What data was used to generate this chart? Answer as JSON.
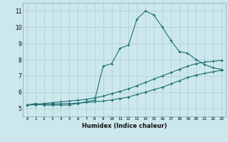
{
  "xlabel": "Humidex (Indice chaleur)",
  "bg_color": "#cce8ed",
  "grid_color": "#aacdd4",
  "line_color": "#1e7070",
  "xlim": [
    -0.5,
    23.5
  ],
  "ylim": [
    4.5,
    11.5
  ],
  "xticks": [
    0,
    1,
    2,
    3,
    4,
    5,
    6,
    7,
    8,
    9,
    10,
    11,
    12,
    13,
    14,
    15,
    16,
    17,
    18,
    19,
    20,
    21,
    22,
    23
  ],
  "yticks": [
    5,
    6,
    7,
    8,
    9,
    10,
    11
  ],
  "line1_x": [
    0,
    1,
    2,
    3,
    4,
    5,
    6,
    7,
    8,
    9,
    10,
    11,
    12,
    13,
    14,
    15,
    16,
    17,
    18,
    19,
    20,
    21,
    22,
    23
  ],
  "line1_y": [
    5.2,
    5.3,
    5.2,
    5.2,
    5.2,
    5.2,
    5.3,
    5.4,
    5.5,
    7.6,
    7.75,
    8.7,
    8.9,
    10.5,
    11.0,
    10.75,
    10.0,
    9.2,
    8.5,
    8.4,
    8.0,
    7.7,
    7.5,
    7.4
  ],
  "line2_x": [
    0,
    1,
    2,
    3,
    4,
    5,
    6,
    7,
    8,
    9,
    10,
    11,
    12,
    13,
    14,
    15,
    16,
    17,
    18,
    19,
    20,
    21,
    22,
    23
  ],
  "line2_y": [
    5.2,
    5.25,
    5.3,
    5.35,
    5.4,
    5.45,
    5.5,
    5.55,
    5.65,
    5.75,
    5.9,
    6.05,
    6.2,
    6.4,
    6.6,
    6.8,
    7.0,
    7.2,
    7.4,
    7.6,
    7.75,
    7.85,
    7.9,
    7.95
  ],
  "line3_x": [
    0,
    1,
    2,
    3,
    4,
    5,
    6,
    7,
    8,
    9,
    10,
    11,
    12,
    13,
    14,
    15,
    16,
    17,
    18,
    19,
    20,
    21,
    22,
    23
  ],
  "line3_y": [
    5.2,
    5.22,
    5.24,
    5.26,
    5.28,
    5.3,
    5.32,
    5.36,
    5.4,
    5.45,
    5.52,
    5.6,
    5.7,
    5.85,
    6.0,
    6.15,
    6.3,
    6.5,
    6.7,
    6.9,
    7.05,
    7.15,
    7.25,
    7.35
  ]
}
